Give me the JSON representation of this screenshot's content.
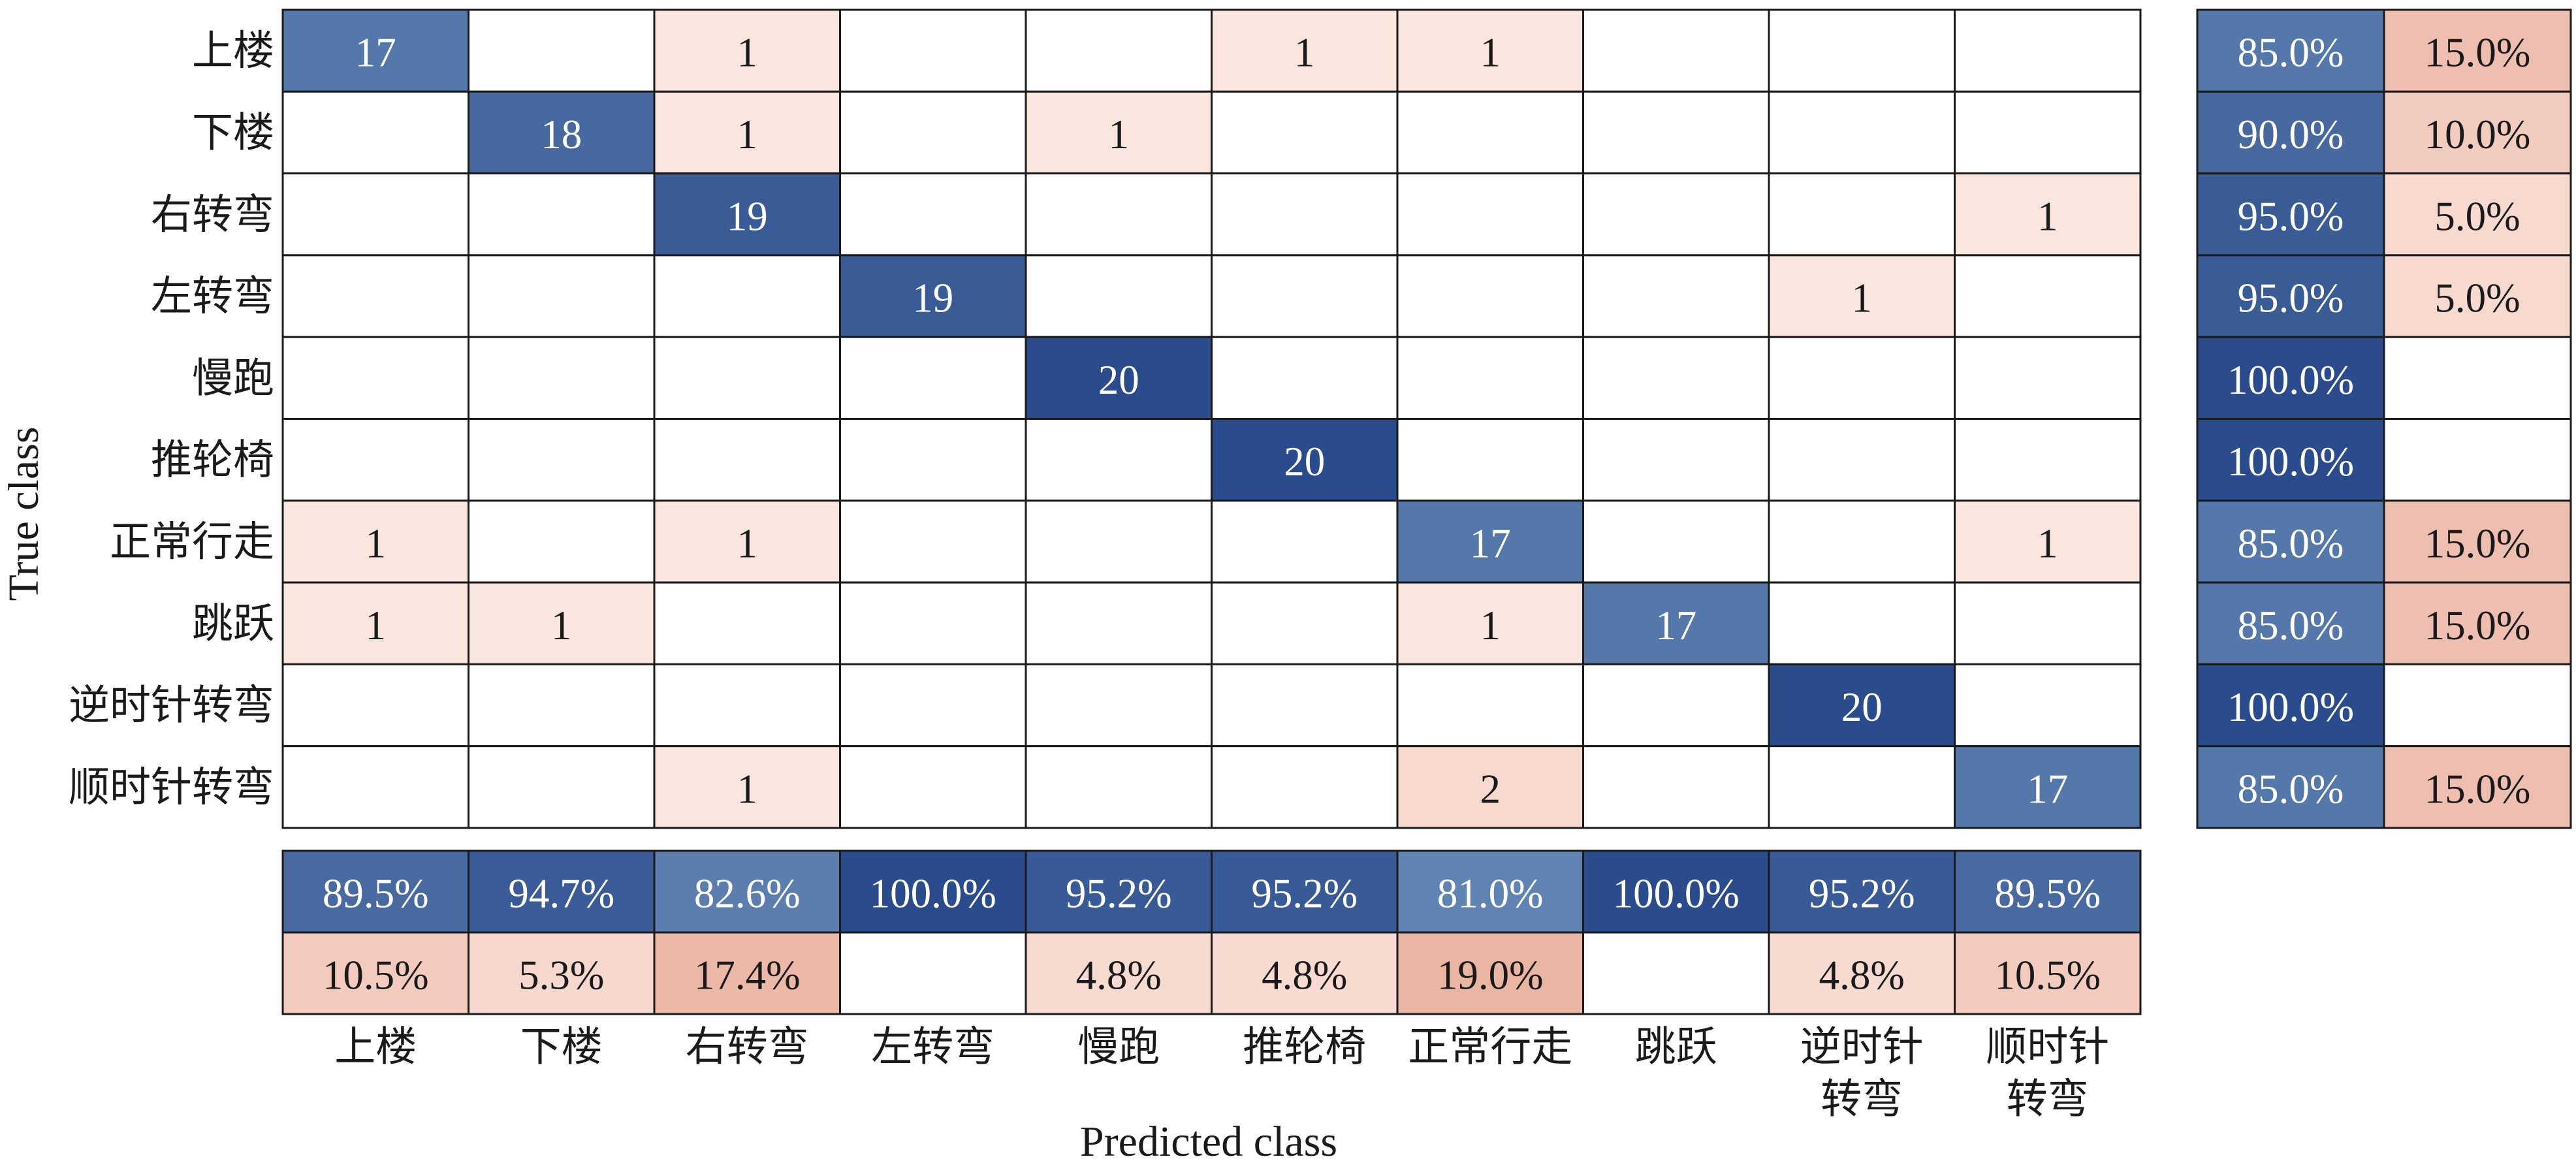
{
  "chart_data": {
    "type": "heatmap",
    "title": "",
    "xlabel": "Predicted class",
    "ylabel": "True class",
    "row_labels": [
      "上楼",
      "下楼",
      "右转弯",
      "左转弯",
      "慢跑",
      "推轮椅",
      "正常行走",
      "跳跃",
      "逆时针转弯",
      "顺时针转弯"
    ],
    "col_labels": [
      [
        "上楼"
      ],
      [
        "下楼"
      ],
      [
        "右转弯"
      ],
      [
        "左转弯"
      ],
      [
        "慢跑"
      ],
      [
        "推轮椅"
      ],
      [
        "正常行走"
      ],
      [
        "跳跃"
      ],
      [
        "逆时针",
        "转弯"
      ],
      [
        "顺时针",
        "转弯"
      ]
    ],
    "matrix": [
      [
        17,
        0,
        1,
        0,
        0,
        1,
        1,
        0,
        0,
        0
      ],
      [
        0,
        18,
        1,
        0,
        1,
        0,
        0,
        0,
        0,
        0
      ],
      [
        0,
        0,
        19,
        0,
        0,
        0,
        0,
        0,
        0,
        1
      ],
      [
        0,
        0,
        0,
        19,
        0,
        0,
        0,
        0,
        1,
        0
      ],
      [
        0,
        0,
        0,
        0,
        20,
        0,
        0,
        0,
        0,
        0
      ],
      [
        0,
        0,
        0,
        0,
        0,
        20,
        0,
        0,
        0,
        0
      ],
      [
        1,
        0,
        1,
        0,
        0,
        0,
        17,
        0,
        0,
        1
      ],
      [
        1,
        1,
        0,
        0,
        0,
        0,
        1,
        17,
        0,
        0
      ],
      [
        0,
        0,
        0,
        0,
        0,
        0,
        0,
        0,
        20,
        0
      ],
      [
        0,
        0,
        1,
        0,
        0,
        0,
        2,
        0,
        0,
        17
      ]
    ],
    "row_summary": [
      [
        "85.0%",
        "15.0%"
      ],
      [
        "90.0%",
        "10.0%"
      ],
      [
        "95.0%",
        "5.0%"
      ],
      [
        "95.0%",
        "5.0%"
      ],
      [
        "100.0%",
        ""
      ],
      [
        "100.0%",
        ""
      ],
      [
        "85.0%",
        "15.0%"
      ],
      [
        "85.0%",
        "15.0%"
      ],
      [
        "100.0%",
        ""
      ],
      [
        "85.0%",
        "15.0%"
      ]
    ],
    "col_summary_correct": [
      "89.5%",
      "94.7%",
      "82.6%",
      "100.0%",
      "95.2%",
      "95.2%",
      "81.0%",
      "100.0%",
      "95.2%",
      "89.5%"
    ],
    "col_summary_incorrect": [
      "10.5%",
      "5.3%",
      "17.4%",
      "",
      "4.8%",
      "4.8%",
      "19.0%",
      "",
      "4.8%",
      "10.5%"
    ],
    "colors": {
      "correct_max": "#2b4c8c",
      "correct_min": "#6286b4",
      "error_max": "#eab2a0",
      "error_min": "#fbe6df",
      "grid": "#1a1a1a"
    }
  }
}
